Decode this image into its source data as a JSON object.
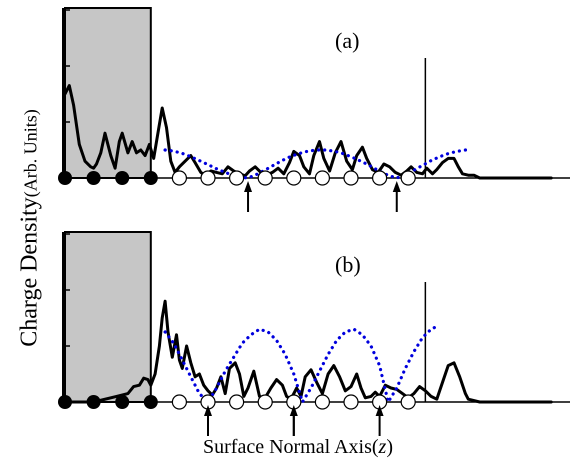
{
  "figure": {
    "ylabel_main": "Charge Density",
    "ylabel_unit": "(Arb. Units)",
    "xlabel_prefix": "Surface Normal Axis(",
    "xlabel_var": "z",
    "xlabel_suffix": ")"
  },
  "chart_data": [
    {
      "type": "line",
      "panel_label": "(a)",
      "xlim": [
        0,
        17
      ],
      "ylim": [
        0,
        4
      ],
      "grid": false,
      "shaded_region": [
        0,
        3
      ],
      "vertical_line_x": 12.6,
      "atoms_filled": [
        0,
        1,
        2,
        3
      ],
      "atoms_open": [
        4,
        5,
        6,
        7,
        8,
        9,
        10,
        11,
        12
      ],
      "arrows_x": [
        6.4,
        11.6
      ],
      "series": [
        {
          "style": "solid",
          "color": "#000000",
          "x": [
            0,
            0.15,
            0.3,
            0.5,
            0.7,
            0.9,
            1.0,
            1.1,
            1.25,
            1.4,
            1.6,
            1.75,
            1.9,
            2.0,
            2.2,
            2.35,
            2.5,
            2.65,
            2.8,
            2.95,
            3.1,
            3.25,
            3.4,
            3.55,
            3.7,
            3.85,
            4.0,
            4.2,
            4.4,
            4.55,
            4.75,
            4.9,
            5.1,
            5.3,
            5.5,
            5.7,
            5.9,
            6.1,
            6.3,
            6.45,
            6.65,
            6.85,
            7.05,
            7.25,
            7.45,
            7.65,
            7.85,
            8.0,
            8.2,
            8.35,
            8.55,
            8.7,
            8.9,
            9.05,
            9.25,
            9.45,
            9.65,
            9.85,
            10.05,
            10.2,
            10.4,
            10.55,
            10.75,
            10.95,
            11.15,
            11.35,
            11.55,
            11.75,
            11.95,
            12.1,
            12.3,
            12.5,
            12.65,
            12.85,
            13.0,
            13.2,
            13.4,
            13.6,
            13.75,
            13.9,
            14.1,
            14.3,
            14.5,
            15.0,
            17.0
          ],
          "y": [
            3.0,
            3.3,
            2.6,
            1.2,
            0.6,
            0.4,
            0.35,
            0.5,
            0.9,
            1.6,
            0.8,
            0.35,
            1.3,
            1.6,
            0.9,
            1.3,
            0.9,
            1.0,
            0.8,
            1.2,
            0.7,
            1.6,
            2.5,
            1.8,
            0.6,
            0.2,
            0.4,
            0.6,
            0.8,
            0.55,
            0.2,
            0.1,
            0.25,
            0.2,
            0.15,
            0.4,
            0.25,
            0.15,
            0.08,
            0.25,
            0.4,
            0.2,
            0.1,
            0.2,
            0.35,
            0.15,
            0.55,
            0.95,
            0.8,
            0.4,
            0.15,
            0.8,
            1.3,
            0.7,
            0.25,
            0.9,
            1.3,
            0.6,
            0.3,
            0.8,
            1.1,
            0.7,
            0.3,
            0.2,
            0.5,
            0.4,
            0.2,
            0.1,
            0.25,
            0.4,
            0.2,
            0.15,
            0.35,
            0.15,
            0.3,
            0.55,
            0.7,
            0.7,
            0.4,
            0.15,
            0.1,
            0.1,
            0.0,
            0.0,
            0.0
          ]
        },
        {
          "style": "dotted",
          "color": "#0000dd",
          "x": [
            3.5,
            3.8,
            4.1,
            4.4,
            4.7,
            5.0,
            5.3,
            5.6,
            5.9,
            6.2,
            6.4,
            6.7,
            7.0,
            7.3,
            7.6,
            7.9,
            8.2,
            8.5,
            8.8,
            9.1,
            9.4,
            9.7,
            10.0,
            10.3,
            10.6,
            10.9,
            11.2,
            11.5,
            11.6,
            11.9,
            12.2,
            12.5,
            12.8,
            13.1,
            13.4,
            13.7,
            14.0,
            14.2
          ],
          "y": [
            1.0,
            0.96,
            0.88,
            0.76,
            0.62,
            0.48,
            0.33,
            0.2,
            0.09,
            0.02,
            0.0,
            0.13,
            0.29,
            0.46,
            0.63,
            0.77,
            0.88,
            0.96,
            1.0,
            1.0,
            0.96,
            0.88,
            0.76,
            0.62,
            0.47,
            0.3,
            0.14,
            0.03,
            0.0,
            0.12,
            0.28,
            0.45,
            0.62,
            0.76,
            0.87,
            0.95,
            1.0,
            1.0
          ]
        }
      ]
    },
    {
      "type": "line",
      "panel_label": "(b)",
      "xlim": [
        0,
        17
      ],
      "ylim": [
        0,
        4
      ],
      "grid": false,
      "shaded_region": [
        0,
        3
      ],
      "vertical_line_x": 12.6,
      "atoms_filled": [
        0,
        1,
        2,
        3
      ],
      "atoms_open": [
        4,
        5,
        6,
        7,
        8,
        9,
        10,
        11,
        12
      ],
      "arrows_x": [
        5.0,
        8.0,
        11.0
      ],
      "series": [
        {
          "style": "solid",
          "color": "#000000",
          "x": [
            0,
            1.0,
            1.8,
            2.2,
            2.4,
            2.6,
            2.75,
            2.9,
            3.0,
            3.15,
            3.3,
            3.4,
            3.5,
            3.6,
            3.75,
            3.9,
            4.0,
            4.1,
            4.25,
            4.4,
            4.55,
            4.7,
            4.85,
            5.0,
            5.15,
            5.3,
            5.45,
            5.6,
            5.75,
            5.95,
            6.1,
            6.25,
            6.4,
            6.6,
            6.8,
            7.0,
            7.2,
            7.4,
            7.6,
            7.75,
            7.9,
            8.1,
            8.25,
            8.4,
            8.6,
            8.8,
            9.0,
            9.2,
            9.4,
            9.6,
            9.8,
            10.0,
            10.2,
            10.35,
            10.5,
            10.7,
            10.85,
            11.0,
            11.2,
            11.4,
            11.6,
            11.8,
            12.0,
            12.2,
            12.4,
            12.6,
            12.8,
            13.0,
            13.2,
            13.4,
            13.6,
            13.8,
            14.0,
            14.1,
            14.3,
            14.5,
            15.0,
            17.0
          ],
          "y": [
            0.0,
            0.0,
            0.2,
            0.3,
            0.55,
            0.6,
            0.85,
            0.8,
            0.6,
            1.0,
            2.0,
            3.0,
            3.6,
            2.5,
            1.6,
            2.4,
            1.5,
            1.2,
            2.0,
            1.4,
            0.9,
            1.0,
            0.6,
            0.4,
            0.25,
            0.5,
            0.9,
            0.3,
            1.2,
            1.4,
            1.0,
            0.2,
            0.5,
            1.1,
            0.2,
            0.15,
            0.5,
            0.8,
            0.6,
            0.2,
            0.1,
            0.5,
            0.2,
            0.9,
            1.15,
            0.7,
            0.3,
            1.0,
            1.3,
            0.9,
            0.4,
            0.55,
            1.0,
            0.5,
            0.15,
            0.2,
            0.35,
            0.2,
            0.6,
            0.5,
            0.45,
            0.3,
            0.15,
            0.3,
            0.55,
            0.4,
            0.2,
            0.1,
            0.7,
            1.3,
            1.4,
            0.9,
            0.3,
            0.1,
            0.05,
            0.0,
            0.0,
            0.0
          ]
        },
        {
          "style": "dotted",
          "color": "#0000dd",
          "x": [
            3.5,
            3.8,
            4.1,
            4.4,
            4.7,
            5.0,
            5.3,
            5.6,
            5.9,
            6.2,
            6.5,
            6.8,
            7.1,
            7.4,
            7.7,
            8.0,
            8.3,
            8.6,
            8.9,
            9.2,
            9.5,
            9.8,
            10.1,
            10.4,
            10.7,
            11.0,
            11.3,
            11.6,
            11.9,
            12.2,
            12.5,
            12.8,
            13.0
          ],
          "y": [
            2.5,
            2.1,
            1.5,
            0.9,
            0.3,
            0.0,
            0.5,
            1.1,
            1.6,
            2.1,
            2.4,
            2.6,
            2.5,
            2.2,
            1.7,
            1.0,
            0.0,
            0.5,
            1.1,
            1.7,
            2.2,
            2.5,
            2.6,
            2.4,
            2.0,
            1.3,
            0.0,
            0.5,
            1.2,
            1.8,
            2.3,
            2.6,
            2.7
          ]
        }
      ]
    }
  ]
}
